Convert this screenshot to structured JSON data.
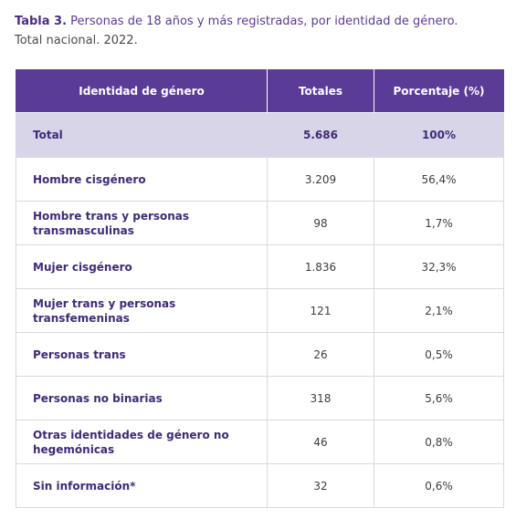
{
  "caption": {
    "label": "Tabla 3.",
    "title": " Personas de 18 años y más registradas, por identidad de género.",
    "subtitle": "Total nacional. 2022."
  },
  "table": {
    "headers": [
      "Identidad de género",
      "Totales",
      "Porcentaje (%)"
    ],
    "rows": [
      {
        "label": "Total",
        "total": "5.686",
        "percent": "100%"
      },
      {
        "label": "Hombre cisgénero",
        "total": "3.209",
        "percent": "56,4%"
      },
      {
        "label": "Hombre trans y personas transmasculinas",
        "total": "98",
        "percent": "1,7%"
      },
      {
        "label": "Mujer cisgénero",
        "total": "1.836",
        "percent": "32,3%"
      },
      {
        "label": "Mujer trans y personas transfemeninas",
        "total": "121",
        "percent": "2,1%"
      },
      {
        "label": "Personas trans",
        "total": "26",
        "percent": "0,5%"
      },
      {
        "label": "Personas no binarias",
        "total": "318",
        "percent": "5,6%"
      },
      {
        "label": "Otras identidades de género no hegemónicas",
        "total": "46",
        "percent": "0,8%"
      },
      {
        "label": "Sin información*",
        "total": "32",
        "percent": "0,6%"
      }
    ]
  },
  "colors": {
    "header_bg": "#5a3c97",
    "total_row_bg": "#d9d5e8",
    "label_text": "#3e2b78"
  }
}
